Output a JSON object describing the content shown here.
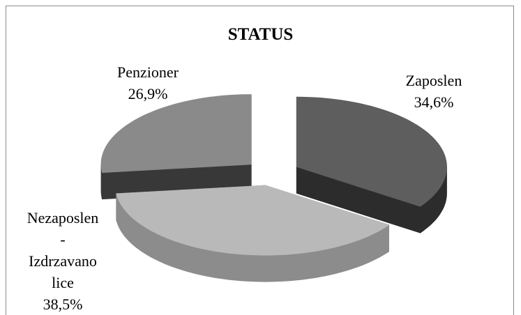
{
  "chart_data": {
    "type": "pie3d",
    "title": "STATUS",
    "categories": [
      "Zaposlen",
      "Nezaposlen - Izdrzavano lice",
      "Penzioner"
    ],
    "values": [
      34.6,
      38.5,
      26.9
    ],
    "value_labels": [
      "34,6%",
      "38,5%",
      "26,9%"
    ],
    "colors": [
      "#5e5e5e",
      "#b9b9b9",
      "#8a8a8a"
    ],
    "side_colors": [
      "#2c2c2c",
      "#8c8c8c",
      "#383838"
    ]
  }
}
